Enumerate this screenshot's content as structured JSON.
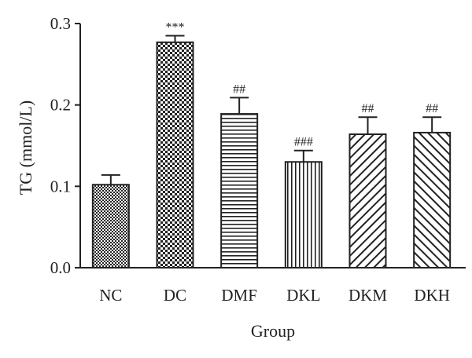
{
  "chart_data": {
    "type": "bar",
    "title": "",
    "xlabel": "Group",
    "ylabel": "TG (mmol/L)",
    "ylim": [
      0,
      0.3
    ],
    "yticks": [
      "0.0",
      "0.1",
      "0.2",
      "0.3"
    ],
    "grid": false,
    "categories": [
      "NC",
      "DC",
      "DMF",
      "DKL",
      "DKM",
      "DKH"
    ],
    "values": [
      0.102,
      0.277,
      0.189,
      0.13,
      0.164,
      0.166
    ],
    "error": [
      0.012,
      0.008,
      0.02,
      0.014,
      0.021,
      0.019
    ],
    "significance": [
      "",
      "***",
      "##",
      "###",
      "##",
      "##"
    ],
    "patterns": [
      "checker-fine",
      "checker-coarse",
      "horizontal-lines",
      "vertical-lines",
      "diagonal-down",
      "diagonal-up"
    ],
    "colors": {
      "axis": "#222222",
      "bar_stroke": "#222222",
      "bar_fill": "#ffffff"
    }
  }
}
